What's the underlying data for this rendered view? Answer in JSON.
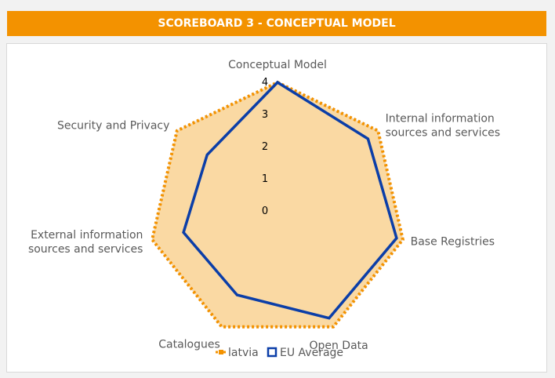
{
  "header": {
    "title": "SCOREBOARD 3 - CONCEPTUAL MODEL"
  },
  "colors": {
    "banner": "#f39200",
    "latvia": "#f39200",
    "eu_average": "#0b3ea8",
    "fill": "#fad9a3",
    "grid": "#d9d9d9"
  },
  "chart_data": {
    "type": "radar",
    "title": "",
    "axes": [
      "Conceptual Model",
      "Internal information sources and services",
      "Base Registries",
      "Open Data",
      "Catalogues",
      "External information sources and services",
      "Security and Privacy"
    ],
    "axis_label_lines": [
      [
        "Conceptual Model"
      ],
      [
        "Internal information",
        "sources and services"
      ],
      [
        "Base Registries"
      ],
      [
        "Open Data"
      ],
      [
        "Catalogues"
      ],
      [
        "External information",
        "sources and services"
      ],
      [
        "Security and Privacy"
      ]
    ],
    "ticks": [
      "0",
      "1",
      "2",
      "3",
      "4"
    ],
    "range": [
      0,
      4
    ],
    "grid": true,
    "legend_position": "bottom",
    "series": [
      {
        "name": "latvia",
        "values": [
          4,
          4,
          4,
          4,
          4,
          4,
          4
        ],
        "style": "dotted",
        "filled": true
      },
      {
        "name": "EU Average",
        "values": [
          4,
          3.6,
          3.8,
          3.7,
          2.9,
          3.0,
          2.8
        ],
        "style": "solid",
        "filled": false
      }
    ]
  }
}
